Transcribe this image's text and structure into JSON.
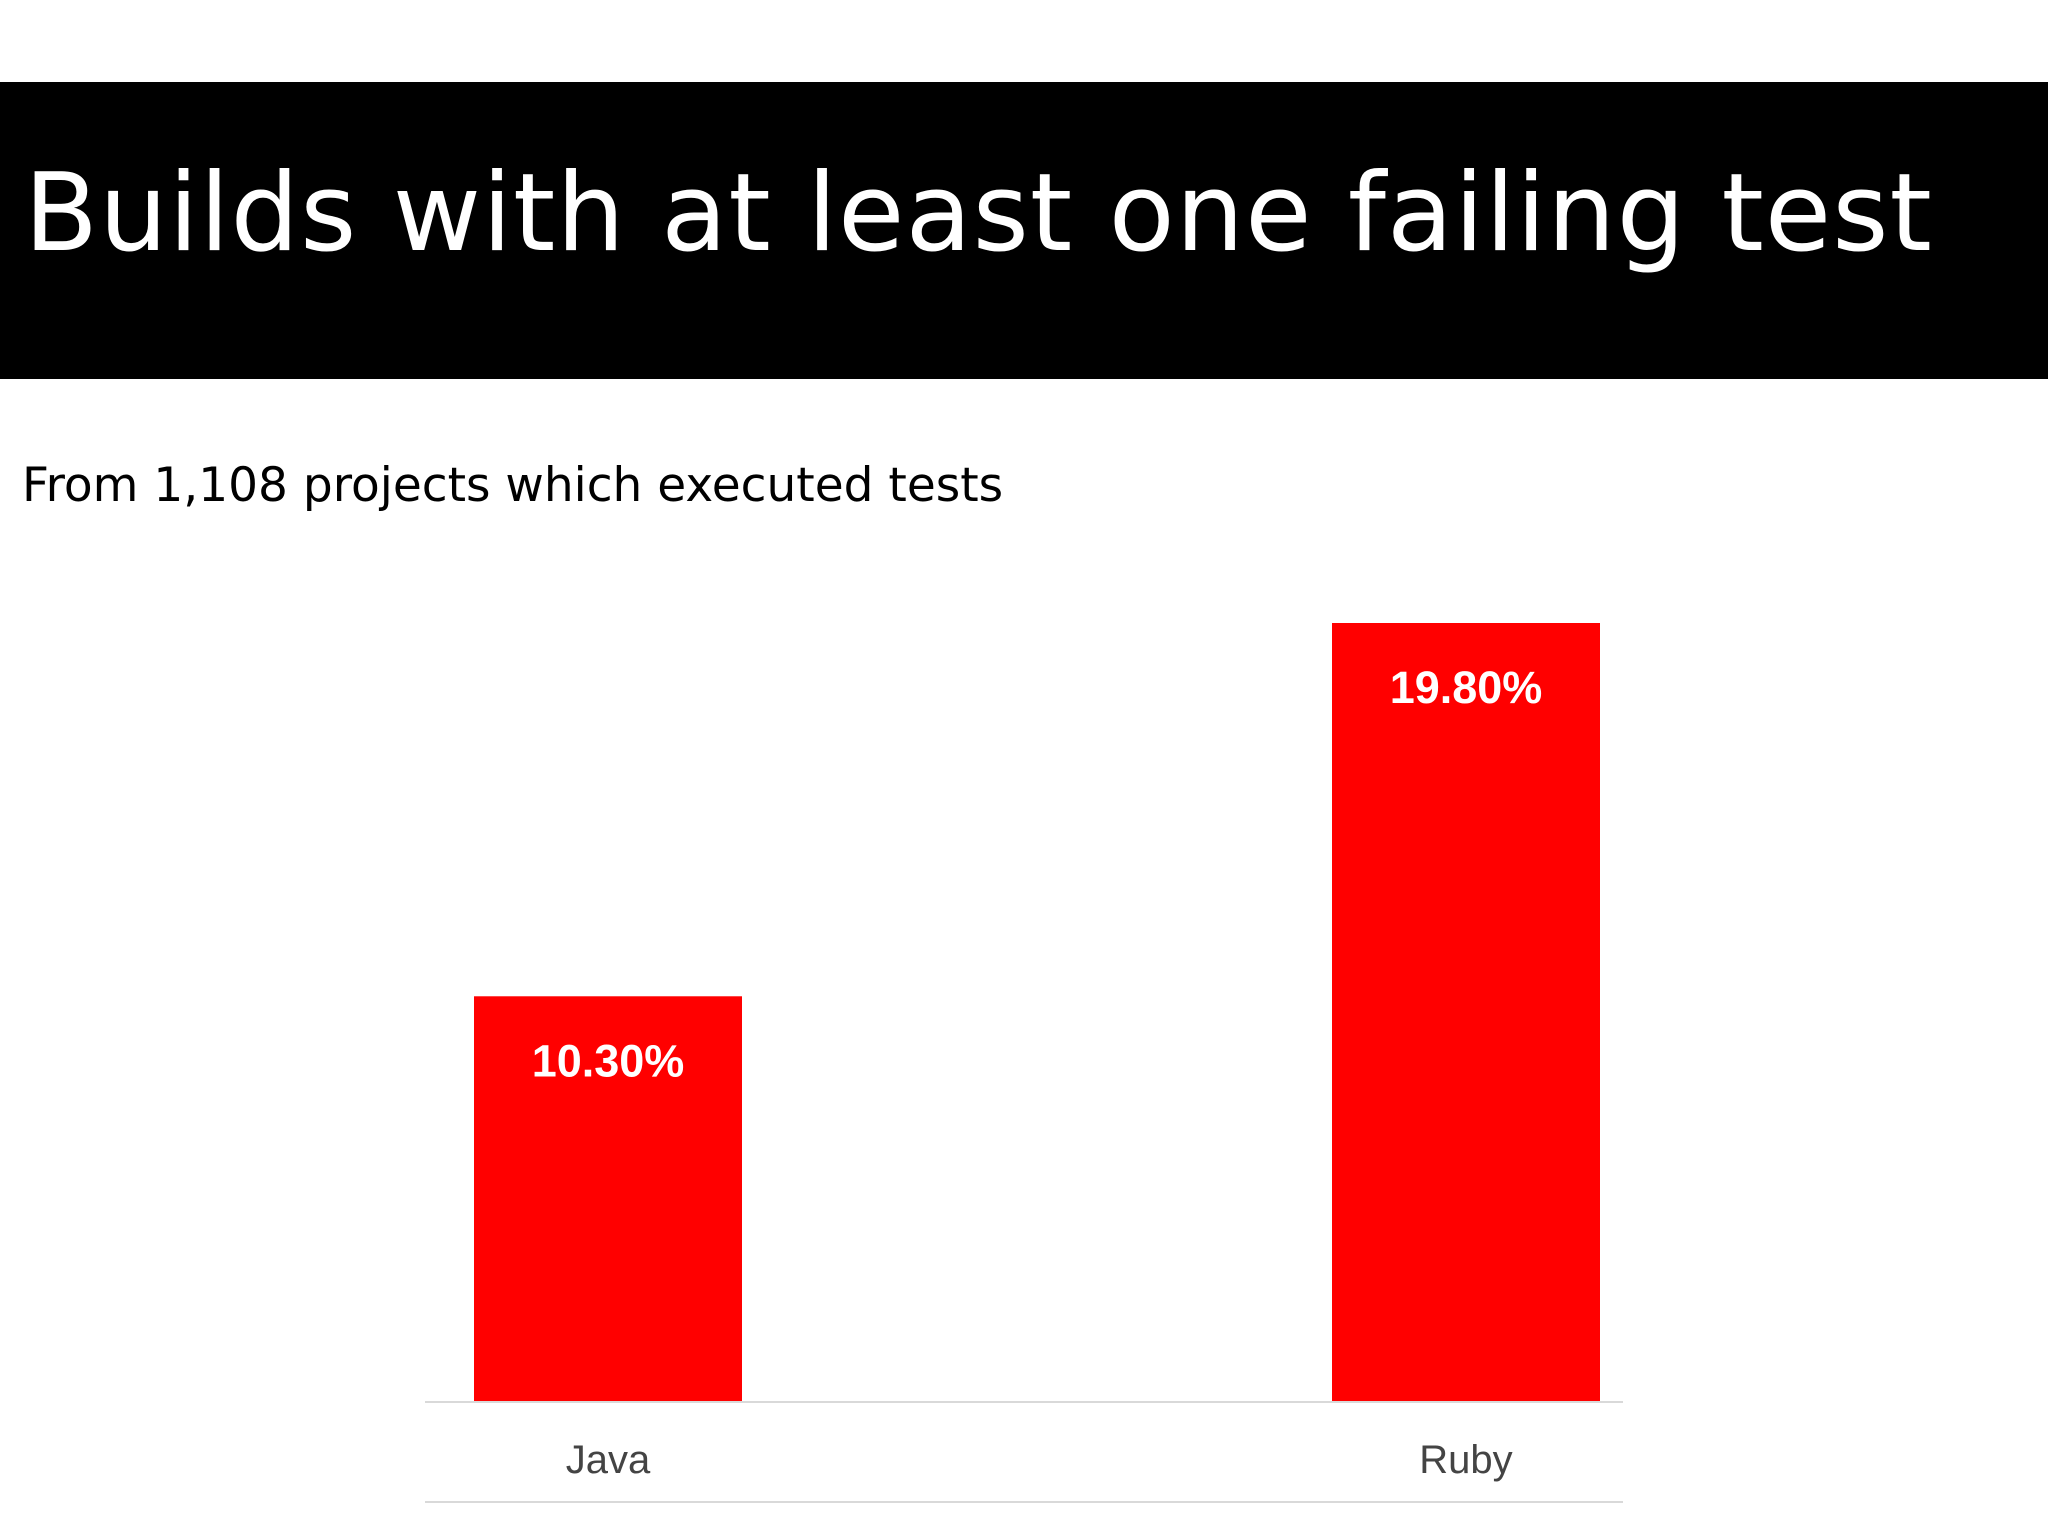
{
  "slide": {
    "title": "Builds with at least one failing test",
    "subtitle": "From 1,108 projects which executed tests"
  },
  "colors": {
    "title_bar": "#000000",
    "bar": "#ff0000",
    "value_label": "#ffffff",
    "axis": "#d9d9d9"
  },
  "chart_data": {
    "type": "bar",
    "categories": [
      "Java",
      "Ruby"
    ],
    "values": [
      10.3,
      19.8
    ],
    "value_labels": [
      "10.30%",
      "19.80%"
    ],
    "unit": "%",
    "title": "",
    "xlabel": "",
    "ylabel": "",
    "ylim": [
      0,
      19.8
    ],
    "grid": false,
    "legend": "none"
  }
}
